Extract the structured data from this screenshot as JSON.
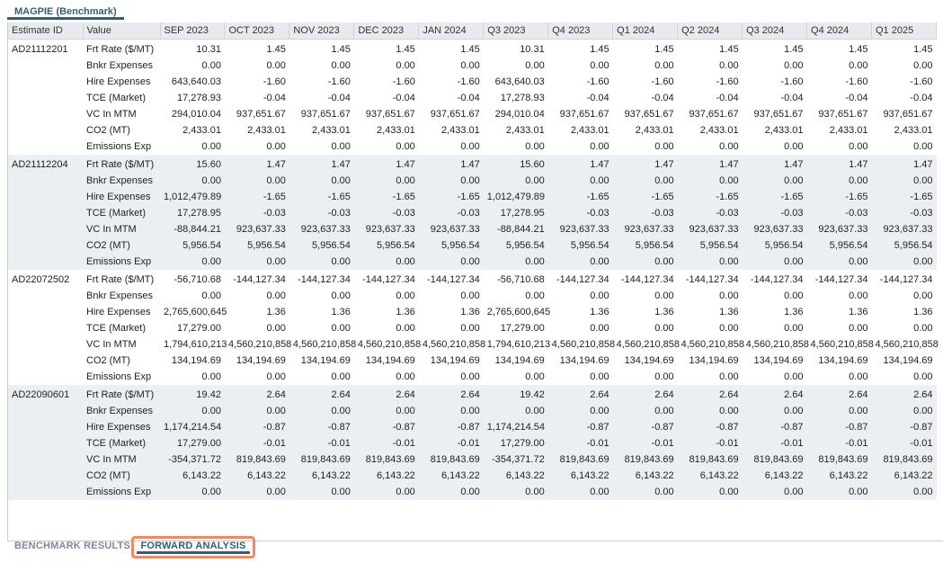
{
  "panel_title": "MAGPIE (Benchmark)",
  "columns": [
    "Estimate ID",
    "Value",
    "SEP 2023",
    "OCT 2023",
    "NOV 2023",
    "DEC 2023",
    "JAN 2024",
    "Q3 2023",
    "Q4 2023",
    "Q1 2024",
    "Q2 2024",
    "Q3 2024",
    "Q4 2024",
    "Q1 2025"
  ],
  "blocks": [
    {
      "id": "AD21112201",
      "rows": [
        {
          "label": "Frt Rate ($/MT)",
          "values": [
            "10.31",
            "1.45",
            "1.45",
            "1.45",
            "1.45",
            "10.31",
            "1.45",
            "1.45",
            "1.45",
            "1.45",
            "1.45",
            "1.45"
          ]
        },
        {
          "label": "Bnkr Expenses",
          "values": [
            "0.00",
            "0.00",
            "0.00",
            "0.00",
            "0.00",
            "0.00",
            "0.00",
            "0.00",
            "0.00",
            "0.00",
            "0.00",
            "0.00"
          ]
        },
        {
          "label": "Hire Expenses",
          "values": [
            "643,640.03",
            "-1.60",
            "-1.60",
            "-1.60",
            "-1.60",
            "643,640.03",
            "-1.60",
            "-1.60",
            "-1.60",
            "-1.60",
            "-1.60",
            "-1.60"
          ]
        },
        {
          "label": "TCE (Market)",
          "values": [
            "17,278.93",
            "-0.04",
            "-0.04",
            "-0.04",
            "-0.04",
            "17,278.93",
            "-0.04",
            "-0.04",
            "-0.04",
            "-0.04",
            "-0.04",
            "-0.04"
          ]
        },
        {
          "label": "VC In MTM",
          "values": [
            "294,010.04",
            "937,651.67",
            "937,651.67",
            "937,651.67",
            "937,651.67",
            "294,010.04",
            "937,651.67",
            "937,651.67",
            "937,651.67",
            "937,651.67",
            "937,651.67",
            "937,651.67"
          ]
        },
        {
          "label": "CO2 (MT)",
          "values": [
            "2,433.01",
            "2,433.01",
            "2,433.01",
            "2,433.01",
            "2,433.01",
            "2,433.01",
            "2,433.01",
            "2,433.01",
            "2,433.01",
            "2,433.01",
            "2,433.01",
            "2,433.01"
          ]
        },
        {
          "label": "Emissions Exp",
          "values": [
            "0.00",
            "0.00",
            "0.00",
            "0.00",
            "0.00",
            "0.00",
            "0.00",
            "0.00",
            "0.00",
            "0.00",
            "0.00",
            "0.00"
          ]
        }
      ]
    },
    {
      "id": "AD21112204",
      "rows": [
        {
          "label": "Frt Rate ($/MT)",
          "values": [
            "15.60",
            "1.47",
            "1.47",
            "1.47",
            "1.47",
            "15.60",
            "1.47",
            "1.47",
            "1.47",
            "1.47",
            "1.47",
            "1.47"
          ]
        },
        {
          "label": "Bnkr Expenses",
          "values": [
            "0.00",
            "0.00",
            "0.00",
            "0.00",
            "0.00",
            "0.00",
            "0.00",
            "0.00",
            "0.00",
            "0.00",
            "0.00",
            "0.00"
          ]
        },
        {
          "label": "Hire Expenses",
          "values": [
            "1,012,479.89",
            "-1.65",
            "-1.65",
            "-1.65",
            "-1.65",
            "1,012,479.89",
            "-1.65",
            "-1.65",
            "-1.65",
            "-1.65",
            "-1.65",
            "-1.65"
          ]
        },
        {
          "label": "TCE (Market)",
          "values": [
            "17,278.95",
            "-0.03",
            "-0.03",
            "-0.03",
            "-0.03",
            "17,278.95",
            "-0.03",
            "-0.03",
            "-0.03",
            "-0.03",
            "-0.03",
            "-0.03"
          ]
        },
        {
          "label": "VC In MTM",
          "values": [
            "-88,844.21",
            "923,637.33",
            "923,637.33",
            "923,637.33",
            "923,637.33",
            "-88,844.21",
            "923,637.33",
            "923,637.33",
            "923,637.33",
            "923,637.33",
            "923,637.33",
            "923,637.33"
          ]
        },
        {
          "label": "CO2 (MT)",
          "values": [
            "5,956.54",
            "5,956.54",
            "5,956.54",
            "5,956.54",
            "5,956.54",
            "5,956.54",
            "5,956.54",
            "5,956.54",
            "5,956.54",
            "5,956.54",
            "5,956.54",
            "5,956.54"
          ]
        },
        {
          "label": "Emissions Exp",
          "values": [
            "0.00",
            "0.00",
            "0.00",
            "0.00",
            "0.00",
            "0.00",
            "0.00",
            "0.00",
            "0.00",
            "0.00",
            "0.00",
            "0.00"
          ]
        }
      ]
    },
    {
      "id": "AD22072502",
      "rows": [
        {
          "label": "Frt Rate ($/MT)",
          "values": [
            "-56,710.68",
            "-144,127.34",
            "-144,127.34",
            "-144,127.34",
            "-144,127.34",
            "-56,710.68",
            "-144,127.34",
            "-144,127.34",
            "-144,127.34",
            "-144,127.34",
            "-144,127.34",
            "-144,127.34"
          ]
        },
        {
          "label": "Bnkr Expenses",
          "values": [
            "0.00",
            "0.00",
            "0.00",
            "0.00",
            "0.00",
            "0.00",
            "0.00",
            "0.00",
            "0.00",
            "0.00",
            "0.00",
            "0.00"
          ]
        },
        {
          "label": "Hire Expenses",
          "values": [
            "2,765,600,645",
            "1.36",
            "1.36",
            "1.36",
            "1.36",
            "2,765,600,645",
            "1.36",
            "1.36",
            "1.36",
            "1.36",
            "1.36",
            "1.36"
          ]
        },
        {
          "label": "TCE (Market)",
          "values": [
            "17,279.00",
            "0.00",
            "0.00",
            "0.00",
            "0.00",
            "17,279.00",
            "0.00",
            "0.00",
            "0.00",
            "0.00",
            "0.00",
            "0.00"
          ]
        },
        {
          "label": "VC In MTM",
          "values": [
            "1,794,610,213",
            "4,560,210,858",
            "4,560,210,858",
            "4,560,210,858",
            "4,560,210,858",
            "1,794,610,213",
            "4,560,210,858",
            "4,560,210,858",
            "4,560,210,858",
            "4,560,210,858",
            "4,560,210,858",
            "4,560,210,858"
          ]
        },
        {
          "label": "CO2 (MT)",
          "values": [
            "134,194.69",
            "134,194.69",
            "134,194.69",
            "134,194.69",
            "134,194.69",
            "134,194.69",
            "134,194.69",
            "134,194.69",
            "134,194.69",
            "134,194.69",
            "134,194.69",
            "134,194.69"
          ]
        },
        {
          "label": "Emissions Exp",
          "values": [
            "0.00",
            "0.00",
            "0.00",
            "0.00",
            "0.00",
            "0.00",
            "0.00",
            "0.00",
            "0.00",
            "0.00",
            "0.00",
            "0.00"
          ]
        }
      ]
    },
    {
      "id": "AD22090601",
      "rows": [
        {
          "label": "Frt Rate ($/MT)",
          "values": [
            "19.42",
            "2.64",
            "2.64",
            "2.64",
            "2.64",
            "19.42",
            "2.64",
            "2.64",
            "2.64",
            "2.64",
            "2.64",
            "2.64"
          ]
        },
        {
          "label": "Bnkr Expenses",
          "values": [
            "0.00",
            "0.00",
            "0.00",
            "0.00",
            "0.00",
            "0.00",
            "0.00",
            "0.00",
            "0.00",
            "0.00",
            "0.00",
            "0.00"
          ]
        },
        {
          "label": "Hire Expenses",
          "values": [
            "1,174,214.54",
            "-0.87",
            "-0.87",
            "-0.87",
            "-0.87",
            "1,174,214.54",
            "-0.87",
            "-0.87",
            "-0.87",
            "-0.87",
            "-0.87",
            "-0.87"
          ]
        },
        {
          "label": "TCE (Market)",
          "values": [
            "17,279.00",
            "-0.01",
            "-0.01",
            "-0.01",
            "-0.01",
            "17,279.00",
            "-0.01",
            "-0.01",
            "-0.01",
            "-0.01",
            "-0.01",
            "-0.01"
          ]
        },
        {
          "label": "VC In MTM",
          "values": [
            "-354,371.72",
            "819,843.69",
            "819,843.69",
            "819,843.69",
            "819,843.69",
            "-354,371.72",
            "819,843.69",
            "819,843.69",
            "819,843.69",
            "819,843.69",
            "819,843.69",
            "819,843.69"
          ]
        },
        {
          "label": "CO2 (MT)",
          "values": [
            "6,143.22",
            "6,143.22",
            "6,143.22",
            "6,143.22",
            "6,143.22",
            "6,143.22",
            "6,143.22",
            "6,143.22",
            "6,143.22",
            "6,143.22",
            "6,143.22",
            "6,143.22"
          ]
        },
        {
          "label": "Emissions Exp",
          "values": [
            "0.00",
            "0.00",
            "0.00",
            "0.00",
            "0.00",
            "0.00",
            "0.00",
            "0.00",
            "0.00",
            "0.00",
            "0.00",
            "0.00"
          ]
        }
      ]
    }
  ],
  "bottom_tabs": {
    "benchmark": "BENCHMARK RESULTS",
    "forward": "FORWARD ANALYSIS",
    "active": "FORWARD ANALYSIS"
  },
  "colors": {
    "accent": "#2f5f78",
    "highlight": "#ef8a62",
    "shade": "#e9eff2"
  }
}
